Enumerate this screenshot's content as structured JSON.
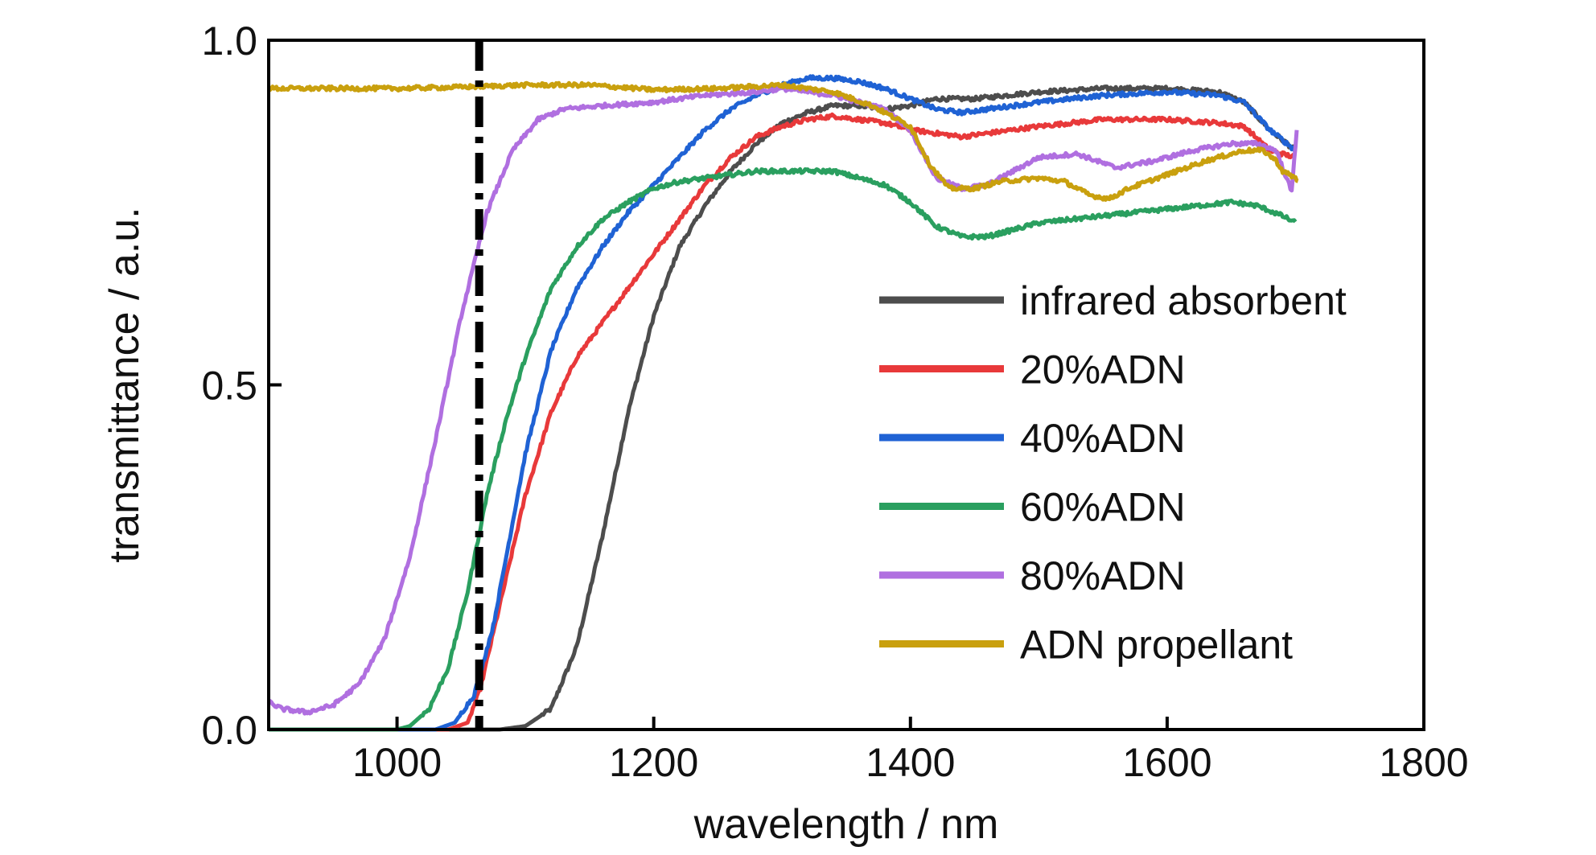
{
  "chart_data": {
    "type": "line",
    "xlabel": "wavelength / nm",
    "ylabel": "transmittance / a.u.",
    "xlim": [
      900,
      1800
    ],
    "ylim": [
      0,
      1.0
    ],
    "xticks": [
      1000,
      1200,
      1400,
      1600,
      1800
    ],
    "yticks": [
      0.0,
      0.5,
      1.0
    ],
    "xtick_labels": [
      "1000",
      "1200",
      "1400",
      "1600",
      "1800"
    ],
    "ytick_labels": [
      "0.0",
      "0.5",
      "1.0"
    ],
    "grid": false,
    "legend_position": "center-right",
    "reference_line": {
      "x": 1064,
      "style": "dash-dot",
      "color": "#000000"
    },
    "series": [
      {
        "name": "infrared absorbent",
        "color": "#4d4d4d",
        "points": [
          [
            900,
            0.0
          ],
          [
            1000,
            0.0
          ],
          [
            1080,
            0.0
          ],
          [
            1100,
            0.005
          ],
          [
            1120,
            0.03
          ],
          [
            1140,
            0.12
          ],
          [
            1160,
            0.28
          ],
          [
            1180,
            0.46
          ],
          [
            1200,
            0.6
          ],
          [
            1220,
            0.7
          ],
          [
            1240,
            0.76
          ],
          [
            1260,
            0.81
          ],
          [
            1280,
            0.85
          ],
          [
            1300,
            0.88
          ],
          [
            1320,
            0.895
          ],
          [
            1340,
            0.905
          ],
          [
            1360,
            0.905
          ],
          [
            1380,
            0.9
          ],
          [
            1400,
            0.905
          ],
          [
            1420,
            0.915
          ],
          [
            1450,
            0.915
          ],
          [
            1500,
            0.925
          ],
          [
            1550,
            0.93
          ],
          [
            1600,
            0.93
          ],
          [
            1640,
            0.925
          ],
          [
            1660,
            0.91
          ],
          [
            1680,
            0.87
          ],
          [
            1700,
            0.84
          ]
        ]
      },
      {
        "name": "20%ADN",
        "color": "#e8393a",
        "points": [
          [
            900,
            0.0
          ],
          [
            1000,
            0.0
          ],
          [
            1040,
            0.0
          ],
          [
            1055,
            0.01
          ],
          [
            1065,
            0.06
          ],
          [
            1080,
            0.18
          ],
          [
            1100,
            0.34
          ],
          [
            1120,
            0.46
          ],
          [
            1140,
            0.54
          ],
          [
            1160,
            0.59
          ],
          [
            1180,
            0.64
          ],
          [
            1200,
            0.69
          ],
          [
            1220,
            0.74
          ],
          [
            1240,
            0.79
          ],
          [
            1260,
            0.83
          ],
          [
            1280,
            0.86
          ],
          [
            1300,
            0.875
          ],
          [
            1320,
            0.885
          ],
          [
            1340,
            0.89
          ],
          [
            1360,
            0.885
          ],
          [
            1380,
            0.88
          ],
          [
            1400,
            0.87
          ],
          [
            1420,
            0.865
          ],
          [
            1440,
            0.86
          ],
          [
            1460,
            0.865
          ],
          [
            1500,
            0.875
          ],
          [
            1550,
            0.885
          ],
          [
            1600,
            0.885
          ],
          [
            1640,
            0.88
          ],
          [
            1660,
            0.875
          ],
          [
            1680,
            0.84
          ],
          [
            1700,
            0.83
          ]
        ]
      },
      {
        "name": "40%ADN",
        "color": "#1f62d4",
        "points": [
          [
            900,
            0.0
          ],
          [
            1000,
            0.0
          ],
          [
            1030,
            0.0
          ],
          [
            1045,
            0.01
          ],
          [
            1060,
            0.05
          ],
          [
            1075,
            0.15
          ],
          [
            1090,
            0.3
          ],
          [
            1100,
            0.4
          ],
          [
            1120,
            0.55
          ],
          [
            1140,
            0.64
          ],
          [
            1160,
            0.7
          ],
          [
            1180,
            0.75
          ],
          [
            1200,
            0.79
          ],
          [
            1220,
            0.83
          ],
          [
            1240,
            0.87
          ],
          [
            1260,
            0.9
          ],
          [
            1280,
            0.92
          ],
          [
            1300,
            0.935
          ],
          [
            1320,
            0.945
          ],
          [
            1340,
            0.945
          ],
          [
            1360,
            0.94
          ],
          [
            1380,
            0.93
          ],
          [
            1400,
            0.915
          ],
          [
            1420,
            0.9
          ],
          [
            1440,
            0.895
          ],
          [
            1460,
            0.9
          ],
          [
            1500,
            0.91
          ],
          [
            1550,
            0.92
          ],
          [
            1600,
            0.925
          ],
          [
            1640,
            0.92
          ],
          [
            1660,
            0.91
          ],
          [
            1680,
            0.87
          ],
          [
            1700,
            0.84
          ]
        ]
      },
      {
        "name": "60%ADN",
        "color": "#2a9f5f",
        "points": [
          [
            900,
            0.0
          ],
          [
            1000,
            0.0
          ],
          [
            1010,
            0.005
          ],
          [
            1025,
            0.03
          ],
          [
            1040,
            0.09
          ],
          [
            1055,
            0.2
          ],
          [
            1070,
            0.34
          ],
          [
            1085,
            0.45
          ],
          [
            1100,
            0.54
          ],
          [
            1120,
            0.64
          ],
          [
            1140,
            0.7
          ],
          [
            1160,
            0.74
          ],
          [
            1180,
            0.765
          ],
          [
            1200,
            0.785
          ],
          [
            1220,
            0.795
          ],
          [
            1240,
            0.8
          ],
          [
            1260,
            0.805
          ],
          [
            1280,
            0.81
          ],
          [
            1300,
            0.81
          ],
          [
            1320,
            0.81
          ],
          [
            1340,
            0.81
          ],
          [
            1360,
            0.8
          ],
          [
            1380,
            0.79
          ],
          [
            1400,
            0.765
          ],
          [
            1420,
            0.73
          ],
          [
            1440,
            0.715
          ],
          [
            1460,
            0.715
          ],
          [
            1500,
            0.735
          ],
          [
            1550,
            0.745
          ],
          [
            1600,
            0.755
          ],
          [
            1650,
            0.765
          ],
          [
            1670,
            0.76
          ],
          [
            1690,
            0.745
          ],
          [
            1700,
            0.735
          ]
        ]
      },
      {
        "name": "80%ADN",
        "color": "#b06fe0",
        "points": [
          [
            900,
            0.04
          ],
          [
            910,
            0.03
          ],
          [
            930,
            0.025
          ],
          [
            950,
            0.035
          ],
          [
            970,
            0.065
          ],
          [
            990,
            0.13
          ],
          [
            1010,
            0.25
          ],
          [
            1030,
            0.42
          ],
          [
            1050,
            0.6
          ],
          [
            1070,
            0.75
          ],
          [
            1090,
            0.84
          ],
          [
            1110,
            0.885
          ],
          [
            1130,
            0.9
          ],
          [
            1160,
            0.905
          ],
          [
            1200,
            0.91
          ],
          [
            1240,
            0.92
          ],
          [
            1280,
            0.925
          ],
          [
            1300,
            0.93
          ],
          [
            1340,
            0.92
          ],
          [
            1380,
            0.9
          ],
          [
            1400,
            0.87
          ],
          [
            1420,
            0.8
          ],
          [
            1440,
            0.785
          ],
          [
            1460,
            0.79
          ],
          [
            1500,
            0.83
          ],
          [
            1530,
            0.835
          ],
          [
            1560,
            0.815
          ],
          [
            1590,
            0.825
          ],
          [
            1620,
            0.84
          ],
          [
            1650,
            0.85
          ],
          [
            1670,
            0.85
          ],
          [
            1685,
            0.84
          ],
          [
            1693,
            0.8
          ],
          [
            1697,
            0.78
          ],
          [
            1701,
            0.87
          ]
        ]
      },
      {
        "name": "ADN propellant",
        "color": "#c9a00e",
        "points": [
          [
            900,
            0.93
          ],
          [
            950,
            0.93
          ],
          [
            1000,
            0.93
          ],
          [
            1050,
            0.932
          ],
          [
            1100,
            0.935
          ],
          [
            1150,
            0.935
          ],
          [
            1200,
            0.928
          ],
          [
            1250,
            0.93
          ],
          [
            1300,
            0.935
          ],
          [
            1340,
            0.925
          ],
          [
            1370,
            0.905
          ],
          [
            1400,
            0.875
          ],
          [
            1415,
            0.82
          ],
          [
            1430,
            0.785
          ],
          [
            1450,
            0.785
          ],
          [
            1470,
            0.795
          ],
          [
            1500,
            0.8
          ],
          [
            1520,
            0.795
          ],
          [
            1540,
            0.775
          ],
          [
            1555,
            0.77
          ],
          [
            1570,
            0.785
          ],
          [
            1600,
            0.805
          ],
          [
            1630,
            0.825
          ],
          [
            1660,
            0.84
          ],
          [
            1675,
            0.84
          ],
          [
            1685,
            0.825
          ],
          [
            1690,
            0.81
          ],
          [
            1700,
            0.8
          ],
          [
            1702,
            0.795
          ]
        ]
      }
    ]
  }
}
